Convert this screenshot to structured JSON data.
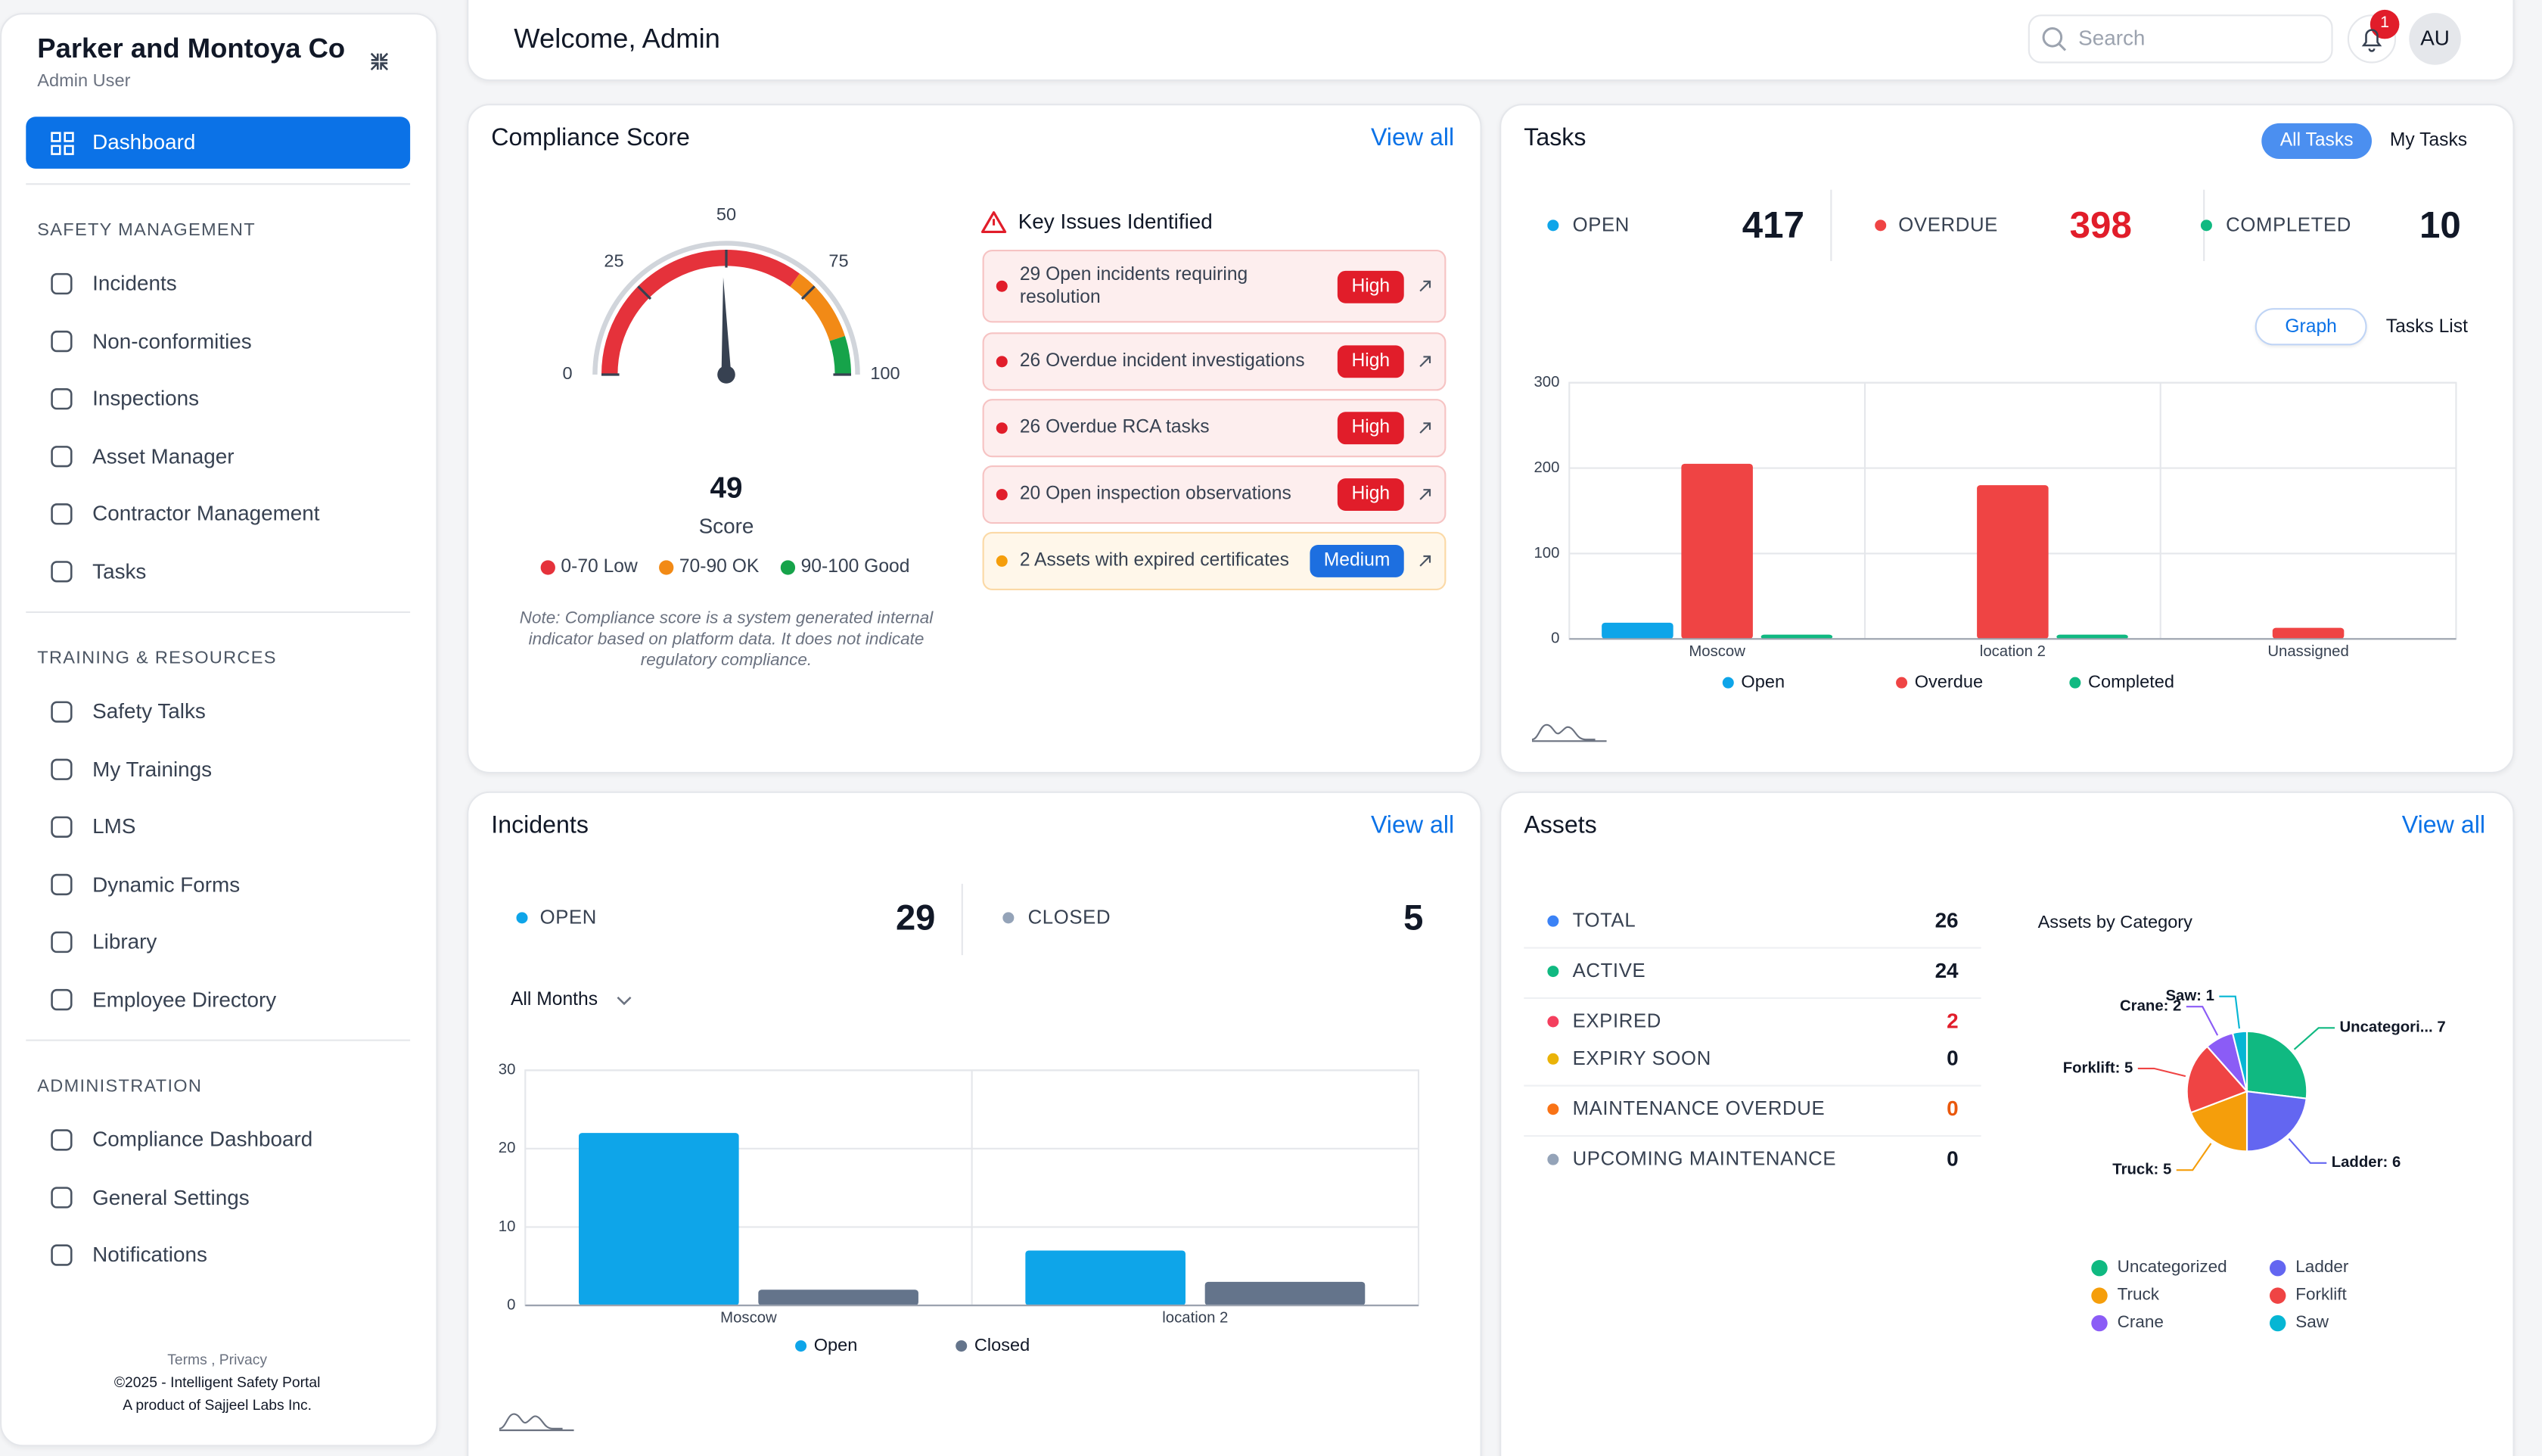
{
  "sidebar": {
    "org": "Parker and Montoya Co",
    "user": "Admin User",
    "active": "Dashboard",
    "sections": [
      {
        "title": "SAFETY MANAGEMENT",
        "items": [
          "Incidents",
          "Non-conformities",
          "Inspections",
          "Asset Manager",
          "Contractor Management",
          "Tasks"
        ]
      },
      {
        "title": "TRAINING & RESOURCES",
        "items": [
          "Safety Talks",
          "My Trainings",
          "LMS",
          "Dynamic Forms",
          "Library",
          "Employee Directory"
        ]
      },
      {
        "title": "ADMINISTRATION",
        "items": [
          "Compliance Dashboard",
          "General Settings",
          "Notifications"
        ]
      }
    ],
    "footer": [
      "Terms , Privacy",
      "©2025 - Intelligent Safety Portal",
      "A product of Sajjeel Labs Inc."
    ]
  },
  "header": {
    "welcome": "Welcome, Admin",
    "search_placeholder": "Search",
    "notification_count": 1,
    "avatar": "AU"
  },
  "compliance": {
    "title": "Compliance Score",
    "view_all": "View all",
    "gauge": {
      "type": "gauge",
      "value": 49,
      "label": "Score",
      "lim": [
        0,
        100
      ],
      "ticks": [
        0,
        25,
        50,
        75,
        100
      ],
      "bands": [
        {
          "name": "0-70 Low",
          "color": "#e5323b",
          "from": 0,
          "to": 70
        },
        {
          "name": "70-90 OK",
          "color": "#f28a16",
          "from": 70,
          "to": 90
        },
        {
          "name": "90-100 Good",
          "color": "#16a34a",
          "from": 90,
          "to": 100
        }
      ]
    },
    "note": "Note: Compliance score is a system generated internal indicator based on platform data. It does not indicate regulatory compliance.",
    "key_issues": {
      "title": "Key Issues Identified",
      "items": [
        {
          "text": "29 Open incidents requiring resolution",
          "priority": "High",
          "color": "#e11d2a"
        },
        {
          "text": "26 Overdue incident investigations",
          "priority": "High",
          "color": "#e11d2a"
        },
        {
          "text": "26 Overdue RCA tasks",
          "priority": "High",
          "color": "#e11d2a"
        },
        {
          "text": "20 Open inspection observations",
          "priority": "High",
          "color": "#e11d2a"
        },
        {
          "text": "2 Assets with expired certificates",
          "priority": "Medium",
          "color": "#1d6fe0"
        }
      ]
    }
  },
  "tasks": {
    "title": "Tasks",
    "tabs": [
      "All Tasks",
      "My Tasks"
    ],
    "stats": [
      {
        "label": "OPEN",
        "value": 417,
        "color": "#0ea5e9"
      },
      {
        "label": "OVERDUE",
        "value": 398,
        "color": "#ef4444",
        "value_color": "#e11d2a"
      },
      {
        "label": "COMPLETED",
        "value": 10,
        "color": "#10b981"
      }
    ],
    "views": [
      "Graph",
      "Tasks List"
    ],
    "chart": {
      "type": "bar",
      "categories": [
        "Moscow",
        "location 2",
        "Unassigned"
      ],
      "series": [
        {
          "name": "Open",
          "color": "#0ea5e9",
          "values": [
            19,
            0,
            0
          ]
        },
        {
          "name": "Overdue",
          "color": "#ef4444",
          "values": [
            205,
            180,
            13
          ]
        },
        {
          "name": "Completed",
          "color": "#10b981",
          "values": [
            5,
            5,
            0
          ]
        }
      ],
      "ylim": [
        0,
        300
      ],
      "yticks": [
        0,
        100,
        200,
        300
      ],
      "grid": true
    }
  },
  "incidents": {
    "title": "Incidents",
    "view_all": "View all",
    "stats": [
      {
        "label": "OPEN",
        "value": 29,
        "color": "#0ea5e9"
      },
      {
        "label": "CLOSED",
        "value": 5,
        "color": "#94a3b8"
      }
    ],
    "filter": "All Months",
    "chart": {
      "type": "bar",
      "categories": [
        "Moscow",
        "location 2"
      ],
      "series": [
        {
          "name": "Open",
          "color": "#0ea5e9",
          "values": [
            22,
            7
          ]
        },
        {
          "name": "Closed",
          "color": "#64748b",
          "values": [
            2,
            3
          ]
        }
      ],
      "ylim": [
        0,
        30
      ],
      "yticks": [
        0,
        10,
        20,
        30
      ],
      "grid": true
    }
  },
  "assets": {
    "title": "Assets",
    "view_all": "View all",
    "stats": [
      {
        "label": "TOTAL",
        "value": 26,
        "color": "#3b82f6"
      },
      {
        "label": "ACTIVE",
        "value": 24,
        "color": "#10b981"
      },
      {
        "label": "EXPIRED",
        "value": 2,
        "color": "#f43f5e",
        "value_color": "#e11d2a"
      },
      {
        "label": "EXPIRY SOON",
        "value": 0,
        "color": "#eab308"
      },
      {
        "label": "MAINTENANCE OVERDUE",
        "value": 0,
        "color": "#f97316",
        "value_color": "#ea580c"
      },
      {
        "label": "UPCOMING MAINTENANCE",
        "value": 0,
        "color": "#94a3b8"
      }
    ],
    "pie": {
      "type": "pie",
      "title": "Assets by Category",
      "categories": [
        "Uncategorized",
        "Ladder",
        "Truck",
        "Forklift",
        "Crane",
        "Saw"
      ],
      "values": [
        7,
        6,
        5,
        5,
        2,
        1
      ],
      "value_labels": [
        "Uncategori... 7",
        "Ladder: 6",
        "Truck: 5",
        "Forklift: 5",
        "Crane: 2",
        "Saw: 1"
      ],
      "colors": [
        "#10b981",
        "#6366f1",
        "#f59e0b",
        "#ef4444",
        "#8b5cf6",
        "#06b6d4"
      ]
    }
  }
}
